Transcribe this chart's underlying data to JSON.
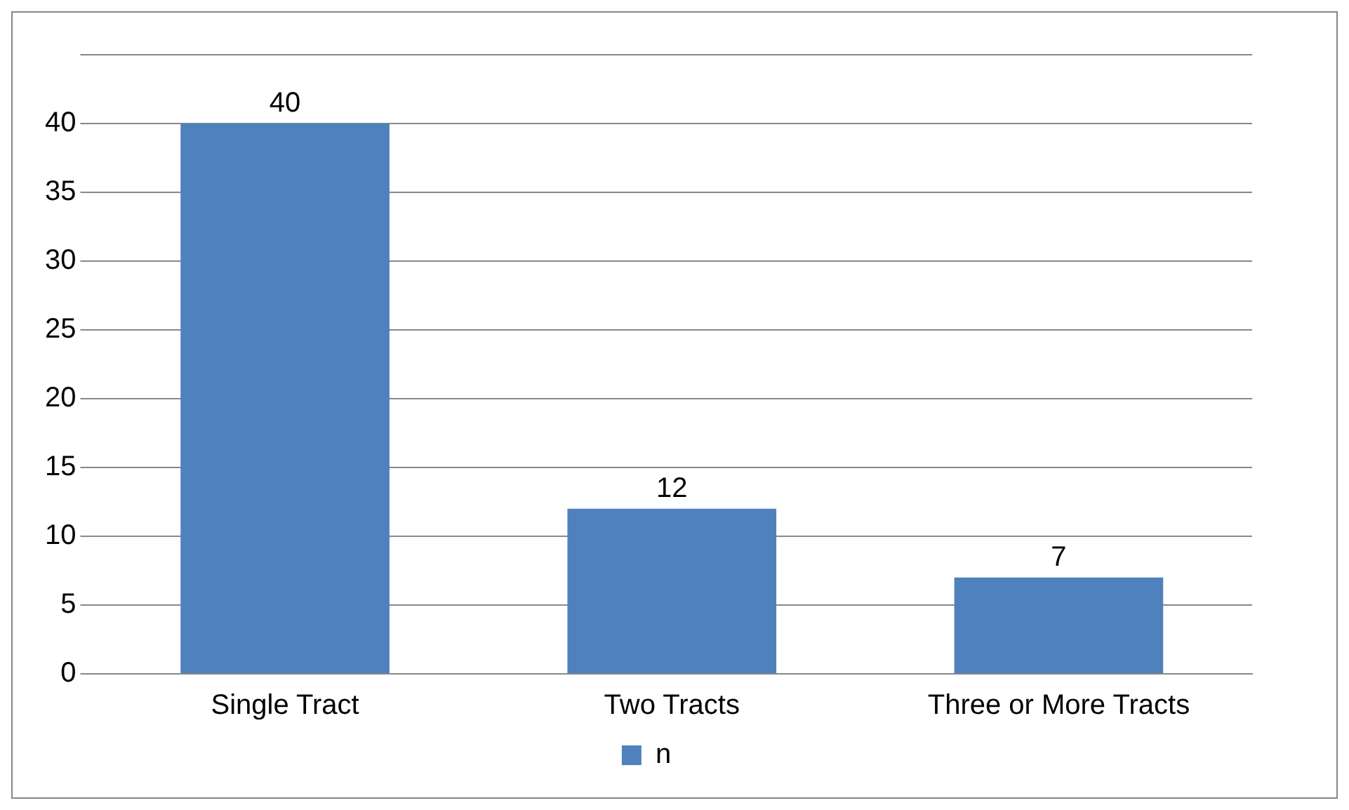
{
  "chart_data": {
    "type": "bar",
    "categories": [
      "Single Tract",
      "Two Tracts",
      "Three or More Tracts"
    ],
    "series": [
      {
        "name": "n",
        "color": "#4f81bd",
        "values": [
          40,
          12,
          7
        ]
      }
    ],
    "ylim": [
      0,
      45
    ],
    "yticks": [
      0,
      5,
      10,
      15,
      20,
      25,
      30,
      35,
      40,
      {
        "value": 45,
        "label": null
      }
    ],
    "grid": "y",
    "legend": "bottom",
    "data_labels": true
  }
}
